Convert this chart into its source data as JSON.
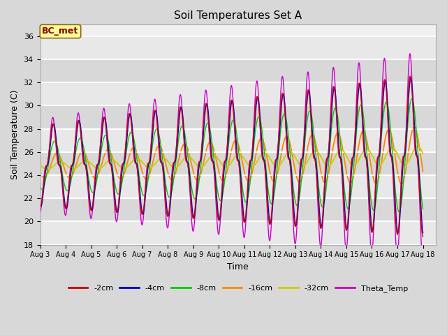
{
  "title": "Soil Temperatures Set A",
  "xlabel": "Time",
  "ylabel": "Soil Temperature (C)",
  "ylim": [
    18,
    37
  ],
  "xlim": [
    0,
    15.5
  ],
  "bg_color": "#d8d8d8",
  "plot_bg_color": "#d8d8d8",
  "annotation_text": "BC_met",
  "annotation_color": "#8B0000",
  "annotation_bg": "#FFFF99",
  "series_colors": {
    "-2cm": "#CC0000",
    "-4cm": "#0000CC",
    "-8cm": "#00CC00",
    "-16cm": "#FF8800",
    "-32cm": "#CCCC00",
    "Theta_Temp": "#CC00CC"
  },
  "x_ticks": [
    0,
    1,
    2,
    3,
    4,
    5,
    6,
    7,
    8,
    9,
    10,
    11,
    12,
    13,
    14,
    15
  ],
  "x_tick_labels": [
    "Aug 3",
    "Aug 4",
    "Aug 5",
    "Aug 6",
    "Aug 7",
    "Aug 8",
    "Aug 9",
    "Aug 10",
    "Aug 11",
    "Aug 12",
    "Aug 13",
    "Aug 14",
    "Aug 15",
    "Aug 16",
    "Aug 17",
    "Aug 18"
  ],
  "yticks": [
    18,
    20,
    22,
    24,
    26,
    28,
    30,
    32,
    34,
    36
  ],
  "figsize": [
    6.4,
    4.8
  ],
  "dpi": 100
}
